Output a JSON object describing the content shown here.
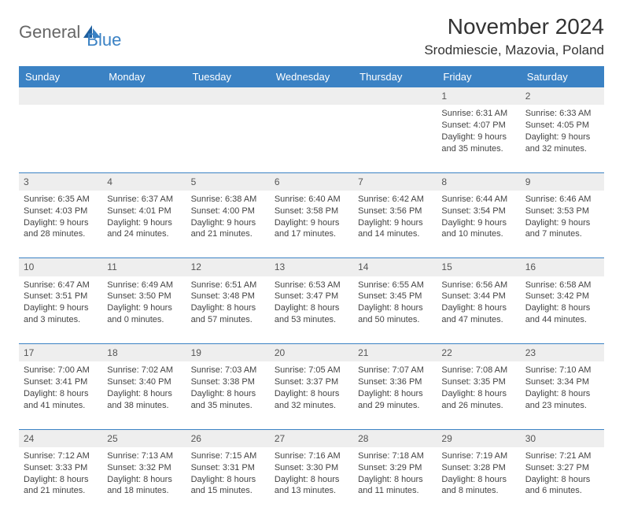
{
  "logo": {
    "text1": "General",
    "text2": "Blue"
  },
  "title": "November 2024",
  "location": "Srodmiescie, Mazovia, Poland",
  "colors": {
    "header_bg": "#3b82c4",
    "header_text": "#ffffff",
    "daynum_bg": "#eeeeee",
    "border": "#3b82c4",
    "body_text": "#444444",
    "page_bg": "#ffffff"
  },
  "day_headers": [
    "Sunday",
    "Monday",
    "Tuesday",
    "Wednesday",
    "Thursday",
    "Friday",
    "Saturday"
  ],
  "weeks": [
    {
      "nums": [
        "",
        "",
        "",
        "",
        "",
        "1",
        "2"
      ],
      "cells": [
        null,
        null,
        null,
        null,
        null,
        {
          "sunrise": "Sunrise: 6:31 AM",
          "sunset": "Sunset: 4:07 PM",
          "day1": "Daylight: 9 hours",
          "day2": "and 35 minutes."
        },
        {
          "sunrise": "Sunrise: 6:33 AM",
          "sunset": "Sunset: 4:05 PM",
          "day1": "Daylight: 9 hours",
          "day2": "and 32 minutes."
        }
      ]
    },
    {
      "nums": [
        "3",
        "4",
        "5",
        "6",
        "7",
        "8",
        "9"
      ],
      "cells": [
        {
          "sunrise": "Sunrise: 6:35 AM",
          "sunset": "Sunset: 4:03 PM",
          "day1": "Daylight: 9 hours",
          "day2": "and 28 minutes."
        },
        {
          "sunrise": "Sunrise: 6:37 AM",
          "sunset": "Sunset: 4:01 PM",
          "day1": "Daylight: 9 hours",
          "day2": "and 24 minutes."
        },
        {
          "sunrise": "Sunrise: 6:38 AM",
          "sunset": "Sunset: 4:00 PM",
          "day1": "Daylight: 9 hours",
          "day2": "and 21 minutes."
        },
        {
          "sunrise": "Sunrise: 6:40 AM",
          "sunset": "Sunset: 3:58 PM",
          "day1": "Daylight: 9 hours",
          "day2": "and 17 minutes."
        },
        {
          "sunrise": "Sunrise: 6:42 AM",
          "sunset": "Sunset: 3:56 PM",
          "day1": "Daylight: 9 hours",
          "day2": "and 14 minutes."
        },
        {
          "sunrise": "Sunrise: 6:44 AM",
          "sunset": "Sunset: 3:54 PM",
          "day1": "Daylight: 9 hours",
          "day2": "and 10 minutes."
        },
        {
          "sunrise": "Sunrise: 6:46 AM",
          "sunset": "Sunset: 3:53 PM",
          "day1": "Daylight: 9 hours",
          "day2": "and 7 minutes."
        }
      ]
    },
    {
      "nums": [
        "10",
        "11",
        "12",
        "13",
        "14",
        "15",
        "16"
      ],
      "cells": [
        {
          "sunrise": "Sunrise: 6:47 AM",
          "sunset": "Sunset: 3:51 PM",
          "day1": "Daylight: 9 hours",
          "day2": "and 3 minutes."
        },
        {
          "sunrise": "Sunrise: 6:49 AM",
          "sunset": "Sunset: 3:50 PM",
          "day1": "Daylight: 9 hours",
          "day2": "and 0 minutes."
        },
        {
          "sunrise": "Sunrise: 6:51 AM",
          "sunset": "Sunset: 3:48 PM",
          "day1": "Daylight: 8 hours",
          "day2": "and 57 minutes."
        },
        {
          "sunrise": "Sunrise: 6:53 AM",
          "sunset": "Sunset: 3:47 PM",
          "day1": "Daylight: 8 hours",
          "day2": "and 53 minutes."
        },
        {
          "sunrise": "Sunrise: 6:55 AM",
          "sunset": "Sunset: 3:45 PM",
          "day1": "Daylight: 8 hours",
          "day2": "and 50 minutes."
        },
        {
          "sunrise": "Sunrise: 6:56 AM",
          "sunset": "Sunset: 3:44 PM",
          "day1": "Daylight: 8 hours",
          "day2": "and 47 minutes."
        },
        {
          "sunrise": "Sunrise: 6:58 AM",
          "sunset": "Sunset: 3:42 PM",
          "day1": "Daylight: 8 hours",
          "day2": "and 44 minutes."
        }
      ]
    },
    {
      "nums": [
        "17",
        "18",
        "19",
        "20",
        "21",
        "22",
        "23"
      ],
      "cells": [
        {
          "sunrise": "Sunrise: 7:00 AM",
          "sunset": "Sunset: 3:41 PM",
          "day1": "Daylight: 8 hours",
          "day2": "and 41 minutes."
        },
        {
          "sunrise": "Sunrise: 7:02 AM",
          "sunset": "Sunset: 3:40 PM",
          "day1": "Daylight: 8 hours",
          "day2": "and 38 minutes."
        },
        {
          "sunrise": "Sunrise: 7:03 AM",
          "sunset": "Sunset: 3:38 PM",
          "day1": "Daylight: 8 hours",
          "day2": "and 35 minutes."
        },
        {
          "sunrise": "Sunrise: 7:05 AM",
          "sunset": "Sunset: 3:37 PM",
          "day1": "Daylight: 8 hours",
          "day2": "and 32 minutes."
        },
        {
          "sunrise": "Sunrise: 7:07 AM",
          "sunset": "Sunset: 3:36 PM",
          "day1": "Daylight: 8 hours",
          "day2": "and 29 minutes."
        },
        {
          "sunrise": "Sunrise: 7:08 AM",
          "sunset": "Sunset: 3:35 PM",
          "day1": "Daylight: 8 hours",
          "day2": "and 26 minutes."
        },
        {
          "sunrise": "Sunrise: 7:10 AM",
          "sunset": "Sunset: 3:34 PM",
          "day1": "Daylight: 8 hours",
          "day2": "and 23 minutes."
        }
      ]
    },
    {
      "nums": [
        "24",
        "25",
        "26",
        "27",
        "28",
        "29",
        "30"
      ],
      "cells": [
        {
          "sunrise": "Sunrise: 7:12 AM",
          "sunset": "Sunset: 3:33 PM",
          "day1": "Daylight: 8 hours",
          "day2": "and 21 minutes."
        },
        {
          "sunrise": "Sunrise: 7:13 AM",
          "sunset": "Sunset: 3:32 PM",
          "day1": "Daylight: 8 hours",
          "day2": "and 18 minutes."
        },
        {
          "sunrise": "Sunrise: 7:15 AM",
          "sunset": "Sunset: 3:31 PM",
          "day1": "Daylight: 8 hours",
          "day2": "and 15 minutes."
        },
        {
          "sunrise": "Sunrise: 7:16 AM",
          "sunset": "Sunset: 3:30 PM",
          "day1": "Daylight: 8 hours",
          "day2": "and 13 minutes."
        },
        {
          "sunrise": "Sunrise: 7:18 AM",
          "sunset": "Sunset: 3:29 PM",
          "day1": "Daylight: 8 hours",
          "day2": "and 11 minutes."
        },
        {
          "sunrise": "Sunrise: 7:19 AM",
          "sunset": "Sunset: 3:28 PM",
          "day1": "Daylight: 8 hours",
          "day2": "and 8 minutes."
        },
        {
          "sunrise": "Sunrise: 7:21 AM",
          "sunset": "Sunset: 3:27 PM",
          "day1": "Daylight: 8 hours",
          "day2": "and 6 minutes."
        }
      ]
    }
  ]
}
